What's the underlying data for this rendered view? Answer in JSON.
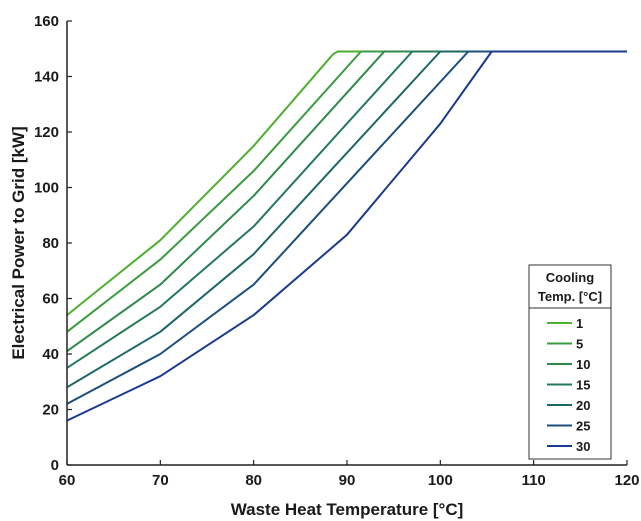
{
  "chart_data": {
    "type": "line",
    "title": "",
    "xlabel": "Waste Heat Temperature [°C]",
    "ylabel": "Electrical Power to Grid [kW]",
    "xlim": [
      60,
      120
    ],
    "ylim": [
      0,
      160
    ],
    "xticks": [
      60,
      70,
      80,
      90,
      100,
      110,
      120
    ],
    "yticks": [
      0,
      20,
      40,
      60,
      80,
      100,
      120,
      140,
      160
    ],
    "grid": false,
    "legend": {
      "title_line1": "Cooling",
      "title_line2": "Temp. [°C]",
      "placement": "lower-right"
    },
    "series": [
      {
        "name": "1",
        "color": "#4caf2e",
        "x": [
          60,
          70,
          80,
          88.5,
          89,
          120
        ],
        "y": [
          54,
          81,
          115,
          148,
          149,
          149
        ]
      },
      {
        "name": "5",
        "color": "#3a9b3f",
        "x": [
          60,
          70,
          80,
          91.5,
          120
        ],
        "y": [
          48,
          74,
          106,
          149,
          149
        ]
      },
      {
        "name": "10",
        "color": "#2e8a4a",
        "x": [
          60,
          70,
          80,
          94,
          120
        ],
        "y": [
          41,
          65,
          97,
          149,
          149
        ]
      },
      {
        "name": "15",
        "color": "#237a55",
        "x": [
          60,
          70,
          80,
          97,
          120
        ],
        "y": [
          35,
          57,
          86,
          149,
          149
        ]
      },
      {
        "name": "20",
        "color": "#1d6766",
        "x": [
          60,
          70,
          80,
          100,
          120
        ],
        "y": [
          28,
          48,
          76,
          149,
          149
        ]
      },
      {
        "name": "25",
        "color": "#1b4f7d",
        "x": [
          60,
          70,
          80,
          103,
          120
        ],
        "y": [
          22,
          40,
          65,
          149,
          149
        ]
      },
      {
        "name": "30",
        "color": "#1a3a8f",
        "x": [
          60,
          70,
          80,
          90,
          100,
          105.5,
          120
        ],
        "y": [
          16,
          32,
          54,
          83,
          123,
          149,
          149
        ]
      }
    ]
  }
}
